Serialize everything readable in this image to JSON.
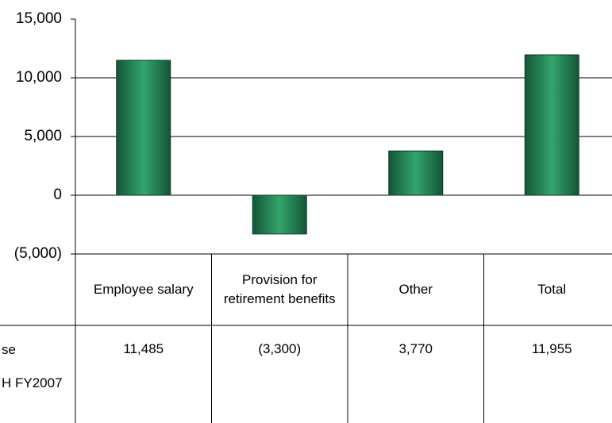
{
  "chart_data": {
    "type": "bar",
    "categories": [
      "Employee salary",
      "Provision for retirement benefits",
      "Other",
      "Total"
    ],
    "values": [
      11485,
      -3300,
      3770,
      11955
    ],
    "value_labels": [
      "11,485",
      "(3,300)",
      "3,770",
      "11,955"
    ],
    "row_label": [
      "se",
      "H FY2007"
    ],
    "color": "#2a8f5b",
    "ylim": [
      -5000,
      15000
    ],
    "yticks": [
      {
        "value": 15000,
        "label": "15,000"
      },
      {
        "value": 10000,
        "label": "10,000"
      },
      {
        "value": 5000,
        "label": "5,000"
      },
      0,
      {
        "value": -5000,
        "label": "(5,000)"
      }
    ],
    "grid": true
  }
}
